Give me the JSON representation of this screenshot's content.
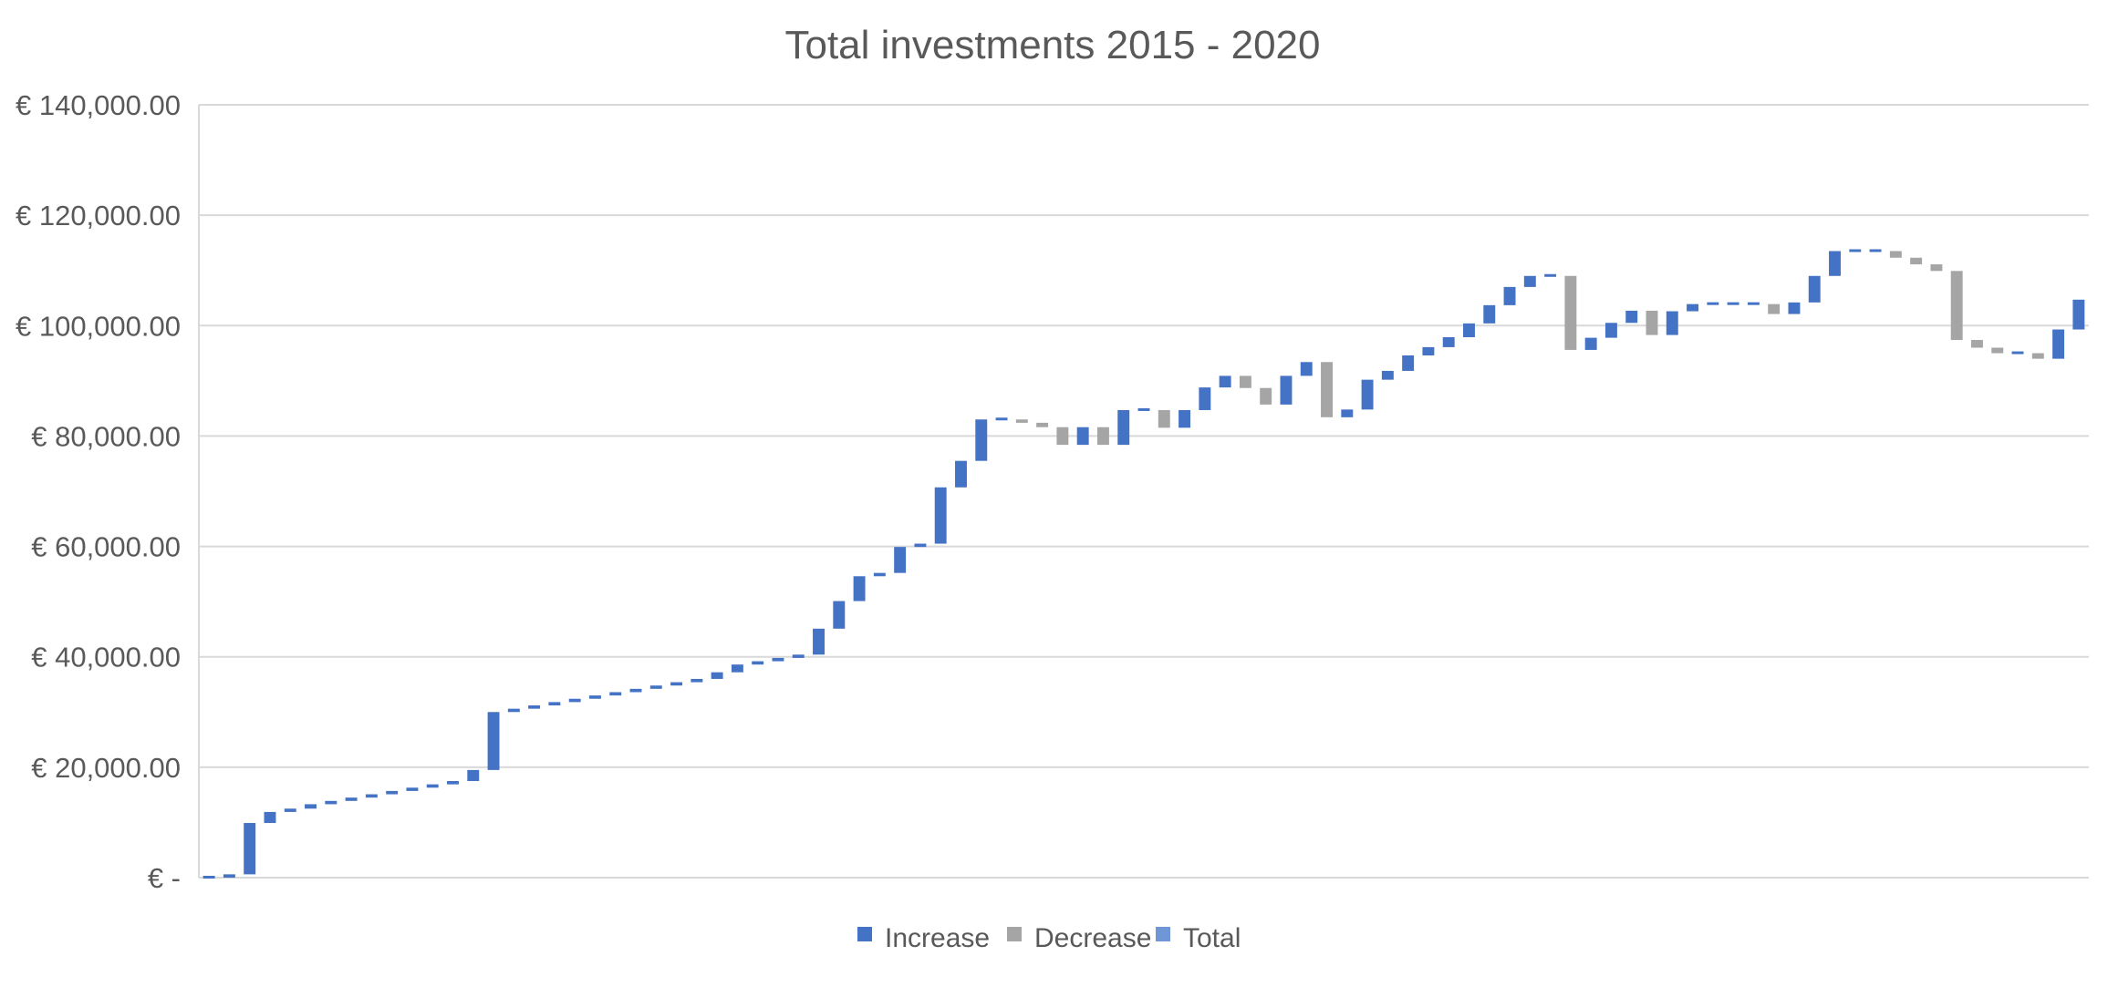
{
  "chart_data": {
    "type": "waterfall",
    "title": "Total investments 2015 - 2020",
    "xlabel": "",
    "ylabel": "",
    "ylim": [
      0,
      140000
    ],
    "yticks": [
      0,
      20000,
      40000,
      60000,
      80000,
      100000,
      120000,
      140000
    ],
    "ytick_labels": [
      "€ -",
      "€ 20,000.00",
      "€ 40,000.00",
      "€ 60,000.00",
      "€ 80,000.00",
      "€ 100,000.00",
      "€ 120,000.00",
      "€ 140,000.00"
    ],
    "grid": true,
    "legend_position": "bottom",
    "legend": [
      {
        "key": "increase",
        "label": "Increase",
        "color": "#4472c4"
      },
      {
        "key": "decrease",
        "label": "Decrease",
        "color": "#a5a5a5"
      },
      {
        "key": "total",
        "label": "Total",
        "color": "#6f96d6"
      }
    ],
    "changes": [
      0,
      600,
      9300,
      2000,
      600,
      800,
      600,
      600,
      600,
      600,
      600,
      600,
      600,
      2000,
      10500,
      600,
      600,
      600,
      600,
      600,
      600,
      600,
      600,
      600,
      600,
      1200,
      1400,
      600,
      600,
      600,
      4700,
      5000,
      4500,
      600,
      4700,
      600,
      10200,
      4800,
      7500,
      0,
      -600,
      -800,
      -3200,
      3200,
      -3200,
      6300,
      0,
      -3200,
      3200,
      4100,
      2100,
      -2200,
      -3000,
      5200,
      2500,
      -10000,
      1400,
      5400,
      1600,
      2800,
      1500,
      1800,
      2500,
      3300,
      3300,
      2000,
      0,
      -13400,
      2200,
      2700,
      2200,
      -4400,
      4300,
      1300,
      0,
      0,
      0,
      -1800,
      2100,
      4800,
      4500,
      0,
      0,
      -1200,
      -1200,
      -1200,
      -12500,
      -1400,
      -1000,
      0,
      -1000,
      5300,
      5400
    ]
  }
}
